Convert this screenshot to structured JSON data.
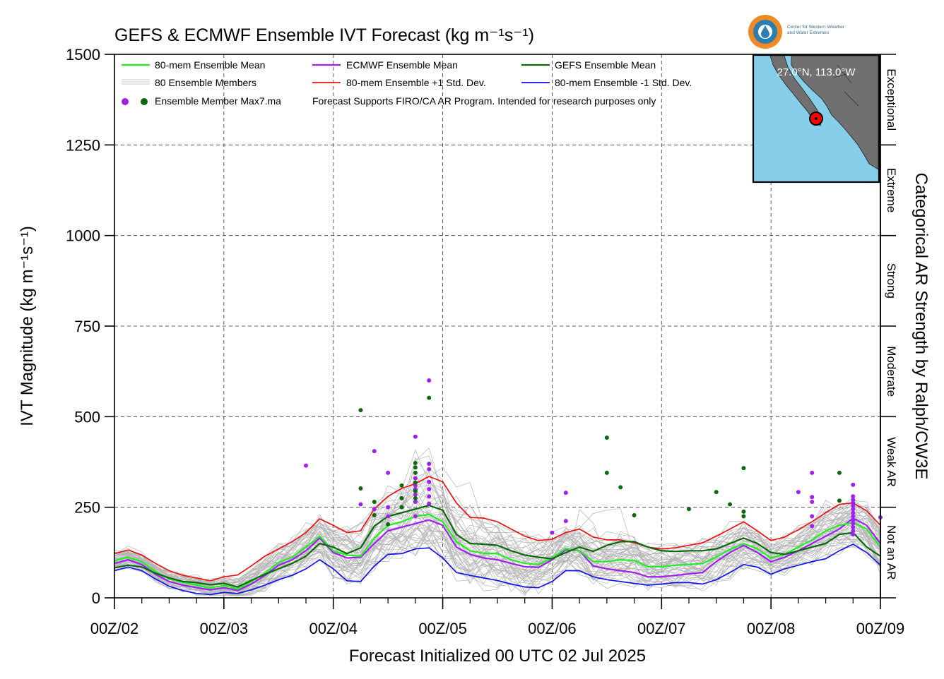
{
  "chart_data": {
    "type": "line",
    "title": "GEFS & ECMWF Ensemble IVT Forecast (kg m⁻¹s⁻¹)",
    "xlabel": "Forecast Initialized 00 UTC 02 Jul 2025",
    "ylabel": "IVT Magnitude (kg m⁻¹s⁻¹)",
    "right_axis_label": "Categorical AR Strength by Ralph/CW3E",
    "x_unit": "days since 00Z/02 (00 UTC 02 Jul 2025)",
    "xlim": [
      0,
      7
    ],
    "ylim": [
      0,
      1500
    ],
    "y_ticks": [
      0,
      250,
      500,
      750,
      1000,
      1250,
      1500
    ],
    "x_tick_labels": [
      "00Z/02",
      "00Z/03",
      "00Z/04",
      "00Z/05",
      "00Z/06",
      "00Z/07",
      "00Z/08",
      "00Z/09"
    ],
    "grid": true,
    "legend_position": "top-left",
    "legend_note": "Forecast Supports FIRO/CA AR Program. Intended for research purposes only",
    "legend": {
      "mean80": "80-mem Ensemble Mean",
      "members": "80 Ensemble Members",
      "max": "Ensemble Member Max7.ma",
      "ecmwf": "ECMWF Ensemble Mean",
      "plus": "80-mem Ensemble +1 Std. Dev.",
      "gefs": "GEFS Ensemble Mean",
      "minus": "80-mem Ensemble -1 Std. Dev."
    },
    "categories": [
      {
        "label": "Not an AR",
        "range": [
          0,
          250
        ]
      },
      {
        "label": "Weak AR",
        "range": [
          250,
          500
        ]
      },
      {
        "label": "Moderate",
        "range": [
          500,
          750
        ]
      },
      {
        "label": "Strong",
        "range": [
          750,
          1000
        ]
      },
      {
        "label": "Extreme",
        "range": [
          1000,
          1250
        ]
      },
      {
        "label": "Exceptional",
        "range": [
          1250,
          1500
        ]
      }
    ],
    "location": "27.0°N, 113.0°W",
    "logo_text": [
      "Center for Western Weather",
      "and Water Extremes"
    ],
    "x": [
      0,
      0.125,
      0.25,
      0.375,
      0.5,
      0.625,
      0.75,
      0.875,
      1.0,
      1.125,
      1.25,
      1.375,
      1.5,
      1.625,
      1.75,
      1.875,
      2.0,
      2.125,
      2.25,
      2.375,
      2.5,
      2.625,
      2.75,
      2.875,
      3.0,
      3.125,
      3.25,
      3.375,
      3.5,
      3.625,
      3.75,
      3.875,
      4.0,
      4.125,
      4.25,
      4.375,
      4.5,
      4.625,
      4.75,
      4.875,
      5.0,
      5.125,
      5.25,
      5.375,
      5.5,
      5.625,
      5.75,
      5.875,
      6.0,
      6.125,
      6.25,
      6.375,
      6.5,
      6.625,
      6.75,
      6.875,
      7.0
    ],
    "series": [
      {
        "name": "80-mem Ensemble Mean",
        "color": "#22ee22",
        "width": 2.2,
        "values": [
          102,
          112,
          100,
          72,
          52,
          43,
          35,
          27,
          34,
          24,
          45,
          68,
          98,
          112,
          140,
          170,
          130,
          118,
          115,
          165,
          200,
          210,
          225,
          230,
          210,
          155,
          130,
          123,
          122,
          105,
          95,
          92,
          110,
          136,
          130,
          100,
          100,
          105,
          103,
          86,
          86,
          90,
          92,
          95,
          113,
          133,
          150,
          135,
          110,
          120,
          140,
          160,
          185,
          200,
          208,
          190,
          140
        ]
      },
      {
        "name": "ECMWF Ensemble Mean",
        "color": "#a020f0",
        "width": 2.2,
        "values": [
          95,
          105,
          92,
          65,
          45,
          35,
          28,
          22,
          28,
          20,
          38,
          62,
          90,
          105,
          130,
          165,
          125,
          110,
          112,
          150,
          185,
          195,
          205,
          215,
          200,
          140,
          120,
          110,
          105,
          95,
          86,
          84,
          105,
          133,
          130,
          88,
          80,
          75,
          70,
          58,
          58,
          62,
          66,
          70,
          100,
          125,
          145,
          125,
          100,
          112,
          130,
          150,
          170,
          190,
          220,
          200,
          150
        ]
      },
      {
        "name": "80-mem Ensemble +1 Std. Dev.",
        "color": "#ee1111",
        "width": 1.7,
        "values": [
          122,
          132,
          118,
          95,
          75,
          62,
          55,
          47,
          58,
          63,
          88,
          115,
          135,
          155,
          180,
          218,
          200,
          180,
          185,
          245,
          280,
          302,
          315,
          335,
          320,
          262,
          222,
          220,
          210,
          190,
          170,
          158,
          162,
          180,
          190,
          168,
          160,
          160,
          152,
          140,
          135,
          138,
          145,
          152,
          170,
          190,
          210,
          185,
          158,
          168,
          188,
          210,
          235,
          258,
          262,
          240,
          200
        ]
      },
      {
        "name": "80-mem Ensemble -1 Std. Dev.",
        "color": "#1111ee",
        "width": 1.7,
        "values": [
          75,
          85,
          75,
          52,
          32,
          20,
          12,
          9,
          15,
          12,
          22,
          35,
          50,
          62,
          80,
          105,
          80,
          47,
          45,
          88,
          120,
          122,
          135,
          138,
          110,
          70,
          62,
          55,
          48,
          38,
          30,
          28,
          45,
          75,
          75,
          58,
          50,
          45,
          40,
          35,
          38,
          42,
          42,
          38,
          50,
          70,
          92,
          85,
          65,
          80,
          90,
          100,
          108,
          130,
          148,
          125,
          90
        ]
      },
      {
        "name": "GEFS Ensemble Mean",
        "color": "#0a6a0a",
        "width": 2.2,
        "values": [
          83,
          90,
          85,
          68,
          55,
          45,
          42,
          36,
          40,
          30,
          48,
          65,
          80,
          95,
          115,
          150,
          140,
          122,
          138,
          198,
          225,
          235,
          245,
          255,
          242,
          175,
          150,
          148,
          145,
          130,
          118,
          112,
          108,
          125,
          140,
          128,
          145,
          155,
          155,
          140,
          130,
          128,
          130,
          130,
          135,
          150,
          165,
          150,
          125,
          120,
          130,
          140,
          150,
          175,
          180,
          140,
          115
        ]
      }
    ],
    "member_band": {
      "name": "80 Ensemble Members",
      "color": "#b5b5b5",
      "count": 50
    },
    "max_points": {
      "ECMWF": [
        [
          1.75,
          365
        ],
        [
          2.25,
          258
        ],
        [
          2.375,
          405
        ],
        [
          2.375,
          245
        ],
        [
          2.5,
          345
        ],
        [
          2.5,
          250
        ],
        [
          2.5,
          225
        ],
        [
          2.625,
          250
        ],
        [
          2.75,
          445
        ],
        [
          2.75,
          330
        ],
        [
          2.75,
          310
        ],
        [
          2.75,
          300
        ],
        [
          2.75,
          285
        ],
        [
          2.75,
          265
        ],
        [
          2.75,
          225
        ],
        [
          2.875,
          600
        ],
        [
          2.875,
          370
        ],
        [
          2.875,
          355
        ],
        [
          2.875,
          320
        ],
        [
          2.875,
          300
        ],
        [
          2.875,
          280
        ],
        [
          2.875,
          260
        ],
        [
          4.0,
          180
        ],
        [
          4.125,
          290
        ],
        [
          4.125,
          212
        ],
        [
          6.25,
          292
        ],
        [
          6.375,
          345
        ],
        [
          6.375,
          278
        ],
        [
          6.375,
          265
        ],
        [
          6.375,
          225
        ],
        [
          6.375,
          198
        ],
        [
          6.75,
          312
        ],
        [
          6.75,
          280
        ],
        [
          6.75,
          270
        ],
        [
          6.75,
          262
        ],
        [
          6.75,
          255
        ],
        [
          6.75,
          245
        ],
        [
          6.75,
          235
        ],
        [
          6.75,
          225
        ],
        [
          6.75,
          215
        ],
        [
          6.75,
          205
        ],
        [
          6.75,
          195
        ],
        [
          6.75,
          185
        ],
        [
          6.75,
          175
        ],
        [
          7.0,
          222
        ]
      ],
      "GEFS": [
        [
          2.25,
          518
        ],
        [
          2.25,
          302
        ],
        [
          2.375,
          265
        ],
        [
          2.375,
          228
        ],
        [
          2.5,
          203
        ],
        [
          2.625,
          310
        ],
        [
          2.625,
          275
        ],
        [
          2.625,
          250
        ],
        [
          2.75,
          372
        ],
        [
          2.75,
          360
        ],
        [
          2.75,
          345
        ],
        [
          2.75,
          318
        ],
        [
          2.75,
          295
        ],
        [
          2.75,
          275
        ],
        [
          2.875,
          552
        ],
        [
          4.5,
          442
        ],
        [
          4.5,
          345
        ],
        [
          4.625,
          305
        ],
        [
          4.75,
          228
        ],
        [
          5.25,
          245
        ],
        [
          5.5,
          292
        ],
        [
          5.625,
          258
        ],
        [
          5.75,
          358
        ],
        [
          5.75,
          238
        ],
        [
          5.75,
          225
        ],
        [
          6.625,
          345
        ],
        [
          6.625,
          268
        ]
      ]
    }
  }
}
